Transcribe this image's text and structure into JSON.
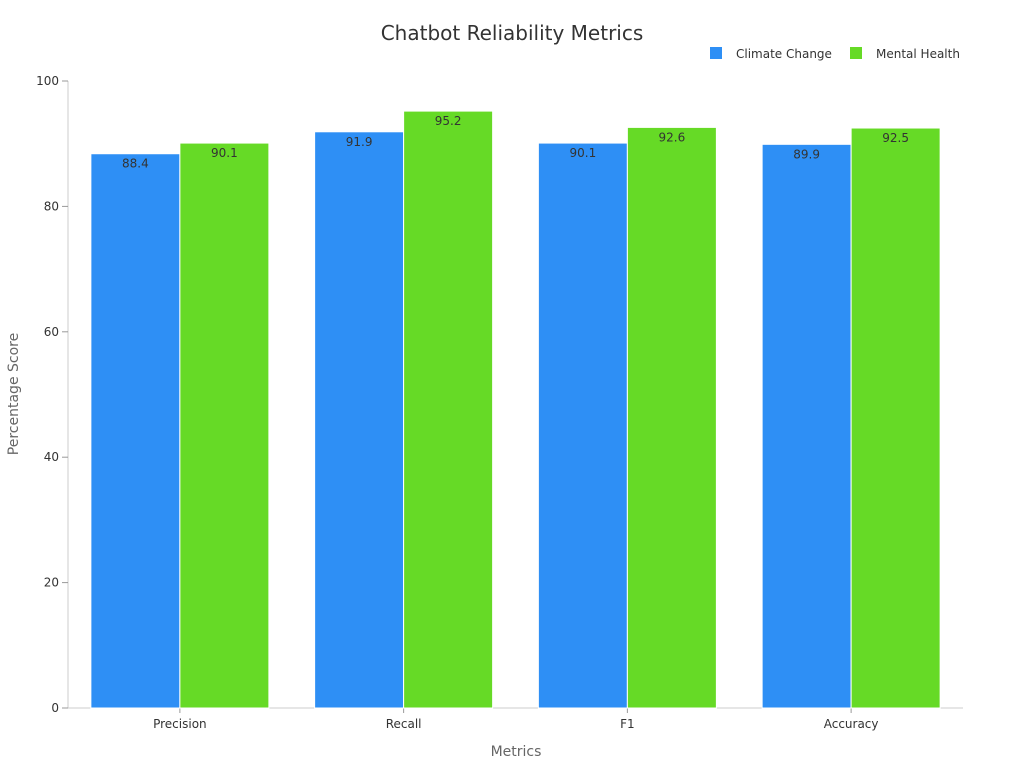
{
  "chart_data": {
    "type": "bar",
    "title": "Chatbot Reliability Metrics",
    "xlabel": "Metrics",
    "ylabel": "Percentage Score",
    "categories": [
      "Precision",
      "Recall",
      "F1",
      "Accuracy"
    ],
    "series": [
      {
        "name": "Climate Change",
        "color": "#2e8ff5",
        "values": [
          88.4,
          91.9,
          90.1,
          89.9
        ]
      },
      {
        "name": "Mental Health",
        "color": "#66da26",
        "values": [
          90.1,
          95.2,
          92.6,
          92.5
        ]
      }
    ],
    "ylim": [
      0,
      100
    ],
    "yticks": [
      0,
      20,
      40,
      60,
      80,
      100
    ],
    "legend_position": "top-right",
    "grid": false,
    "data_labels": true
  }
}
